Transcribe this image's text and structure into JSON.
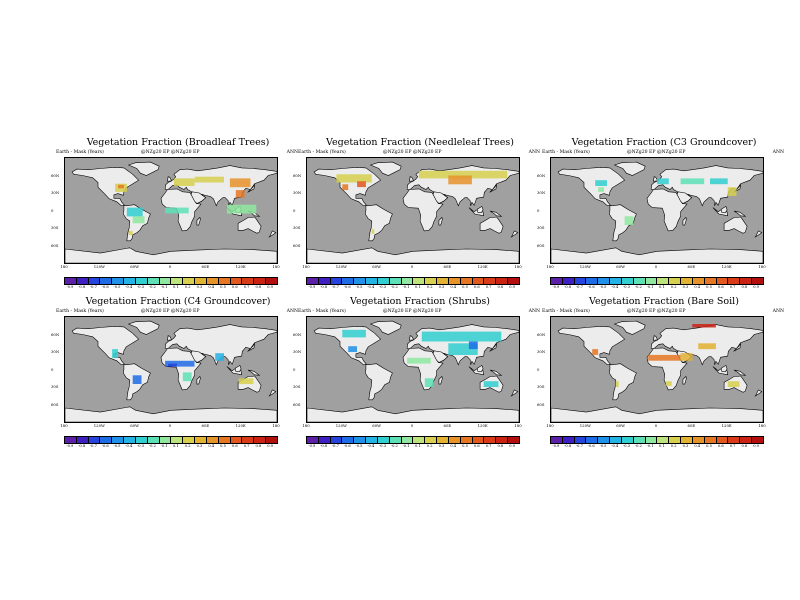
{
  "panels": [
    {
      "title": "Vegetation Fraction (Broadleaf Trees)",
      "left_label": "Earth - Mask (Years)",
      "mid_label": "@NZg20 EP @NZg20 EP",
      "right_label": "ANN",
      "overlay_color": "mixed (olive, green, cyan, orange)"
    },
    {
      "title": "Vegetation Fraction (Needleleaf Trees)",
      "left_label": "Earth - Mask (Years)",
      "mid_label": "@NZg20 EP @NZg20 EP",
      "right_label": "ANN",
      "overlay_color": "mixed (olive, yellow, cyan, red)"
    },
    {
      "title": "Vegetation Fraction (C3 Groundcover)",
      "left_label": "Earth - Mask (Years)",
      "mid_label": "@NZg20 EP @NZg20 EP",
      "right_label": "ANN",
      "overlay_color": "mixed (cyan, green, yellow)"
    },
    {
      "title": "Vegetation Fraction (C4 Groundcover)",
      "left_label": "Earth - Mask (Years)",
      "mid_label": "@NZg20 EP @NZg20 EP",
      "right_label": "ANN",
      "overlay_color": "mixed (blue, cyan, green, yellow)"
    },
    {
      "title": "Vegetation Fraction (Shrubs)",
      "left_label": "Earth - Mask (Years)",
      "mid_label": "@NZg20 EP @NZg20 EP",
      "right_label": "ANN",
      "overlay_color": "mixed (cyan, blue, yellow)"
    },
    {
      "title": "Vegetation Fraction (Bare Soil)",
      "left_label": "Earth - Mask (Years)",
      "mid_label": "@NZg20 EP @NZg20 EP",
      "right_label": "ANN",
      "overlay_color": "mixed (orange, red, yellow, green)"
    }
  ],
  "lat_ticks": [
    "60N",
    "30N",
    "0",
    "30S",
    "60S"
  ],
  "lon_ticks": [
    "180",
    "120W",
    "60W",
    "0",
    "60E",
    "120E",
    "180"
  ],
  "colorbar_labels": [
    "-0.9",
    "-0.8",
    "-0.7",
    "-0.6",
    "-0.5",
    "-0.4",
    "-0.3",
    "-0.2",
    "-0.1",
    "0.1",
    "0.2",
    "0.3",
    "0.4",
    "0.5",
    "0.6",
    "0.7",
    "0.8",
    "0.9"
  ],
  "colorbar_colors": [
    "#5b1fa8",
    "#3e1fc2",
    "#2643dd",
    "#1e6be6",
    "#1f91e8",
    "#23b3e5",
    "#31cfd0",
    "#5ee0b6",
    "#8fe7a0",
    "#bde37c",
    "#d6d04e",
    "#e2b232",
    "#e6932a",
    "#e57624",
    "#e2581e",
    "#d93b18",
    "#cc2214",
    "#b30f0f"
  ],
  "map_colors": {
    "ocean": "#a0a0a0",
    "land": "#ececec",
    "coast": "#000000"
  }
}
